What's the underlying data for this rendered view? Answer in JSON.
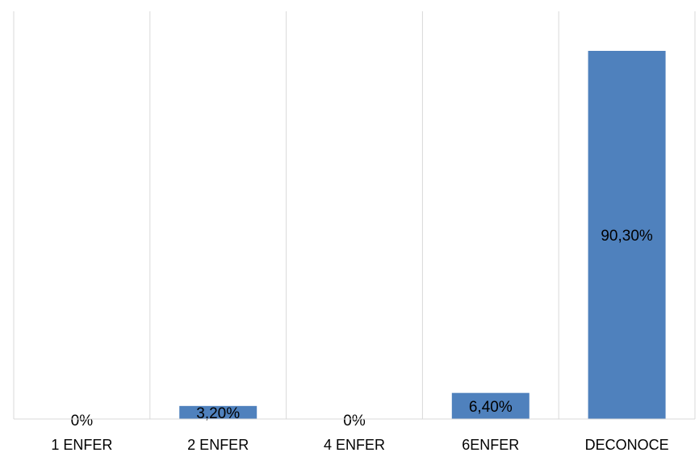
{
  "chart_data": {
    "type": "bar",
    "title": "",
    "xlabel": "",
    "ylabel": "",
    "categories": [
      "1 ENFER",
      "2 ENFER",
      "4 ENFER",
      "6ENFER",
      "DECONOCE"
    ],
    "values": [
      0,
      3.2,
      0,
      6.4,
      90.3
    ],
    "data_labels": [
      "0%",
      "3,20%",
      "0%",
      "6,40%",
      "90,30%"
    ],
    "ylim": [
      0,
      100
    ],
    "grid": "vertical category separators",
    "legend": "none",
    "bar_color": "#4f81bd",
    "grid_color": "#d9d9d9"
  }
}
